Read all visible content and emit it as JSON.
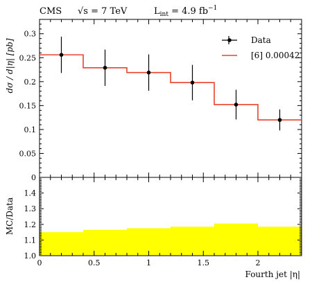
{
  "chart_data": {
    "type": "line",
    "header": {
      "experiment": "CMS",
      "sqrt_s_symbol": "√s",
      "energy_text": " = 7 TeV",
      "lumi_L": "L",
      "lumi_sub": "int",
      "lumi_eq": " = 4.9 fb",
      "lumi_sup": "−1"
    },
    "xlabel": "Fourth jet |η|",
    "ylabel_top": "dσ / d|η| [pb]",
    "ylabel_bottom": "MC/Data",
    "xlim": [
      0,
      2.4
    ],
    "ylim_top": [
      0,
      0.33
    ],
    "ylim_bottom": [
      1.0,
      1.5
    ],
    "x_ticks": [
      0,
      0.5,
      1,
      1.5,
      2
    ],
    "x_tick_labels": [
      "0",
      "0.5",
      "1",
      "1.5",
      "2"
    ],
    "y_ticks_top": [
      0,
      0.05,
      0.1,
      0.15,
      0.2,
      0.25,
      0.3
    ],
    "y_tick_labels_top": [
      "0",
      "0.05",
      "0.1",
      "0.15",
      "0.2",
      "0.25",
      "0.3"
    ],
    "y_ticks_bottom": [
      1.0,
      1.1,
      1.2,
      1.3,
      1.4
    ],
    "y_tick_labels_bottom": [
      "1.0",
      "1.1",
      "1.2",
      "1.3",
      "1.4"
    ],
    "bin_edges": [
      0,
      0.4,
      0.8,
      1.2,
      1.6,
      2.0,
      2.4
    ],
    "series": [
      {
        "name": "Data",
        "type": "points-with-errors",
        "color": "#000000",
        "x": [
          0.2,
          0.6,
          1.0,
          1.4,
          1.8,
          2.2
        ],
        "y": [
          0.256,
          0.229,
          0.219,
          0.198,
          0.152,
          0.12
        ],
        "err": [
          0.038,
          0.038,
          0.038,
          0.037,
          0.031,
          0.022
        ]
      },
      {
        "name": "[6] 0.00042",
        "type": "step",
        "color": "#e8432a",
        "values": [
          0.256,
          0.229,
          0.219,
          0.198,
          0.152,
          0.12
        ]
      }
    ],
    "ratio": {
      "type": "area",
      "color": "#ffff00",
      "values": [
        1.15,
        1.165,
        1.175,
        1.185,
        1.205,
        1.185
      ]
    },
    "legend_position": "top-right",
    "grid": false
  }
}
